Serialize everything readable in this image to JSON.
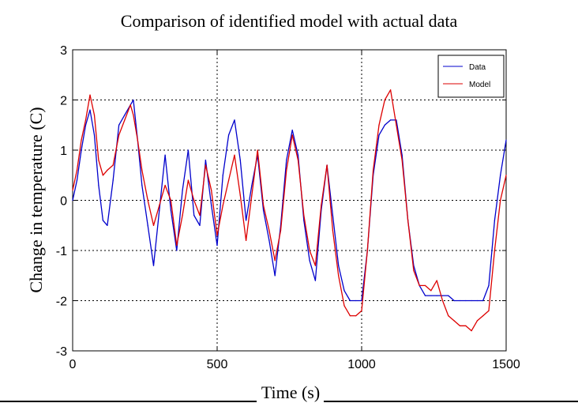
{
  "chart_data": {
    "type": "line",
    "title": "Comparison of identified model with actual data",
    "xlabel": "Time (s)",
    "ylabel": "Change in temperature (C)",
    "xlim": [
      0,
      1500
    ],
    "ylim": [
      -3,
      3
    ],
    "xticks": [
      "0",
      "500",
      "1000",
      "1500"
    ],
    "yticks": [
      "-3",
      "-2",
      "-1",
      "0",
      "1",
      "2",
      "3"
    ],
    "grid": true,
    "legend_position": "top-right",
    "series": [
      {
        "name": "Data",
        "color": "#0000cc",
        "x": [
          0,
          15,
          30,
          45,
          60,
          75,
          90,
          105,
          120,
          140,
          160,
          180,
          200,
          210,
          225,
          240,
          260,
          280,
          300,
          320,
          340,
          360,
          380,
          400,
          420,
          440,
          460,
          480,
          500,
          520,
          540,
          560,
          580,
          600,
          620,
          640,
          660,
          680,
          700,
          720,
          740,
          760,
          780,
          800,
          820,
          840,
          860,
          880,
          900,
          920,
          940,
          960,
          980,
          1000,
          1020,
          1040,
          1060,
          1080,
          1100,
          1120,
          1140,
          1160,
          1180,
          1200,
          1220,
          1240,
          1260,
          1280,
          1300,
          1320,
          1340,
          1360,
          1380,
          1400,
          1420,
          1440,
          1460,
          1480,
          1500
        ],
        "y": [
          0.0,
          0.4,
          1.0,
          1.5,
          1.8,
          1.3,
          0.3,
          -0.4,
          -0.5,
          0.4,
          1.5,
          1.7,
          1.9,
          2.0,
          1.2,
          0.3,
          -0.5,
          -1.3,
          -0.2,
          0.9,
          -0.2,
          -1.0,
          0.2,
          1.0,
          -0.3,
          -0.5,
          0.8,
          -0.1,
          -0.9,
          0.5,
          1.3,
          1.6,
          0.8,
          -0.4,
          0.3,
          0.9,
          -0.2,
          -0.8,
          -1.5,
          -0.5,
          0.8,
          1.4,
          0.9,
          -0.4,
          -1.2,
          -1.6,
          -0.2,
          0.7,
          -0.3,
          -1.3,
          -1.8,
          -2.0,
          -2.0,
          -2.0,
          -1.0,
          0.5,
          1.3,
          1.5,
          1.6,
          1.6,
          0.9,
          -0.4,
          -1.3,
          -1.7,
          -1.9,
          -1.9,
          -1.9,
          -1.9,
          -1.9,
          -2.0,
          -2.0,
          -2.0,
          -2.0,
          -2.0,
          -2.0,
          -1.7,
          -0.4,
          0.5,
          1.2
        ]
      },
      {
        "name": "Model",
        "color": "#dd0000",
        "x": [
          0,
          15,
          30,
          45,
          60,
          75,
          90,
          105,
          120,
          140,
          160,
          180,
          200,
          210,
          225,
          240,
          260,
          280,
          300,
          320,
          340,
          360,
          380,
          400,
          420,
          440,
          460,
          480,
          500,
          520,
          540,
          560,
          580,
          600,
          620,
          640,
          660,
          680,
          700,
          720,
          740,
          760,
          780,
          800,
          820,
          840,
          860,
          880,
          900,
          920,
          940,
          960,
          980,
          1000,
          1020,
          1040,
          1060,
          1080,
          1100,
          1120,
          1140,
          1160,
          1180,
          1200,
          1220,
          1240,
          1260,
          1280,
          1300,
          1320,
          1340,
          1360,
          1380,
          1400,
          1420,
          1440,
          1460,
          1480,
          1500
        ],
        "y": [
          0.2,
          0.6,
          1.2,
          1.6,
          2.1,
          1.7,
          0.8,
          0.5,
          0.6,
          0.7,
          1.3,
          1.6,
          1.9,
          1.7,
          1.2,
          0.6,
          0.0,
          -0.5,
          -0.1,
          0.3,
          0.0,
          -0.9,
          -0.3,
          0.4,
          0.0,
          -0.3,
          0.7,
          0.2,
          -0.7,
          -0.1,
          0.4,
          0.9,
          0.1,
          -0.8,
          0.1,
          1.0,
          -0.1,
          -0.6,
          -1.2,
          -0.6,
          0.6,
          1.3,
          0.8,
          -0.3,
          -1.0,
          -1.3,
          -0.1,
          0.7,
          -0.6,
          -1.5,
          -2.1,
          -2.3,
          -2.3,
          -2.2,
          -1.0,
          0.6,
          1.5,
          2.0,
          2.2,
          1.5,
          0.8,
          -0.4,
          -1.4,
          -1.7,
          -1.7,
          -1.8,
          -1.6,
          -2.0,
          -2.3,
          -2.4,
          -2.5,
          -2.5,
          -2.6,
          -2.4,
          -2.3,
          -2.2,
          -1.0,
          0.0,
          0.5
        ]
      }
    ]
  }
}
